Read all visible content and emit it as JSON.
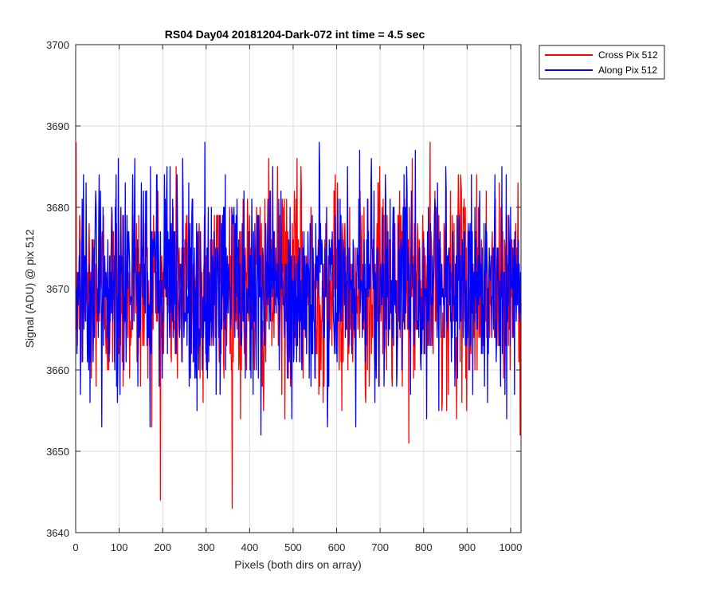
{
  "chart_data": {
    "type": "line",
    "title": "RS04 Day04 20181204-Dark-072 int time = 4.5 sec",
    "xlabel": "Pixels (both dirs on array)",
    "ylabel": "Signal (ADU) @ pix 512",
    "xlim": [
      0,
      1024
    ],
    "ylim": [
      3640,
      3700
    ],
    "xticks": [
      0,
      100,
      200,
      300,
      400,
      500,
      600,
      700,
      800,
      900,
      1000
    ],
    "yticks": [
      3640,
      3650,
      3660,
      3670,
      3680,
      3690,
      3700
    ],
    "grid": true,
    "legend_position": "outside-top-right",
    "series": [
      {
        "name": "Cross Pix 512",
        "color": "#ff0000",
        "mean": 3670,
        "noise_amplitude": 30,
        "note_values": "dense noise trace over 1024 pixels; values between about 3640 and 3694",
        "values": []
      },
      {
        "name": "Along Pix 512",
        "color": "#0000ff",
        "mean": 3670,
        "noise_amplitude": 30,
        "values": []
      }
    ]
  }
}
